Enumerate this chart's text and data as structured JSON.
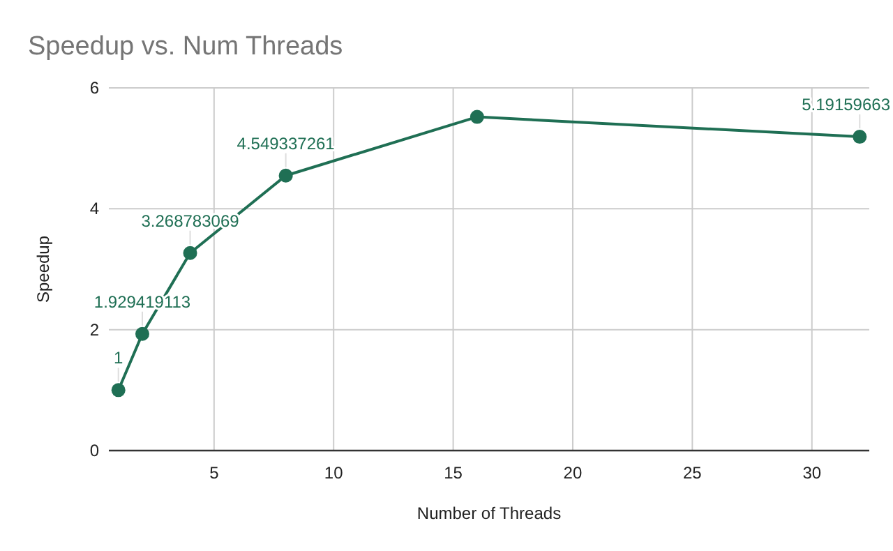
{
  "chart_data": {
    "type": "line",
    "title": "Speedup vs. Num Threads",
    "xlabel": "Number of Threads",
    "ylabel": "Speedup",
    "x": [
      1,
      2,
      4,
      8,
      16,
      32
    ],
    "series": [
      {
        "color": "#1f6f54",
        "values": [
          1,
          1.929419113,
          3.268783069,
          4.549337261,
          5.52,
          5.19159663
        ],
        "value_labels": [
          "1",
          "1.929419113",
          "3.268783069",
          "4.549337261",
          null,
          "5.19159663"
        ]
      }
    ],
    "xlim": [
      0.6,
      32.4
    ],
    "xticks": [
      5,
      10,
      15,
      20,
      25,
      30
    ],
    "ylim": [
      0,
      6
    ],
    "yticks": [
      0,
      2,
      4,
      6
    ],
    "grid": true,
    "marker": "circle",
    "line_style": "solid"
  }
}
